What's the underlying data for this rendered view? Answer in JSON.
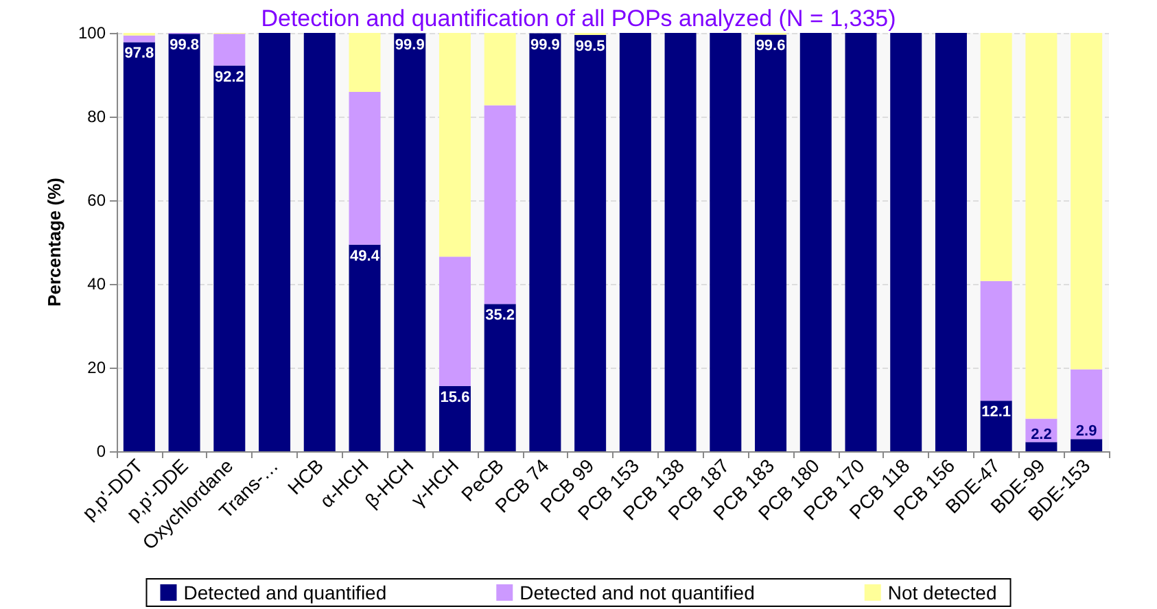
{
  "chart_data": {
    "type": "bar",
    "stacked": true,
    "title": "Detection and quantification of all POPs analyzed (N = 1,335)",
    "ylabel": "Percentage (%)",
    "categories": [
      "p,p'-DDT",
      "p,p'-DDE",
      "Oxychlordane",
      "Trans-…",
      "HCB",
      "α-HCH",
      "β-HCH",
      "γ-HCH",
      "PeCB",
      "PCB 74",
      "PCB 99",
      "PCB 153",
      "PCB 138",
      "PCB 187",
      "PCB 183",
      "PCB 180",
      "PCB 170",
      "PCB 118",
      "PCB 156",
      "BDE-47",
      "BDE-99",
      "BDE-153"
    ],
    "series": [
      {
        "name": "Detected and quantified",
        "color": "#000080",
        "values": [
          97.8,
          99.8,
          92.2,
          100,
          100,
          49.4,
          99.9,
          15.6,
          35.2,
          99.9,
          99.5,
          100,
          100,
          100,
          99.6,
          100,
          100,
          100,
          100,
          12.1,
          2.2,
          2.9
        ],
        "value_labels": [
          "97.8",
          "99.8",
          "92.2",
          null,
          null,
          "49.4",
          "99.9",
          "15.6",
          "35.2",
          "99.9",
          "99.5",
          null,
          null,
          null,
          "99.6",
          null,
          null,
          null,
          null,
          "12.1",
          "2.2",
          "2.9"
        ]
      },
      {
        "name": "Detected and not quantified",
        "color": "#cc99ff",
        "values": [
          1.6,
          0.2,
          7.6,
          0,
          0,
          36.5,
          0,
          30.9,
          47.5,
          0,
          0,
          0,
          0,
          0,
          0,
          0,
          0,
          0,
          0,
          28.6,
          5.6,
          16.7
        ]
      },
      {
        "name": "Not detected",
        "color": "#ffff99",
        "values": [
          0.6,
          0,
          0.2,
          0,
          0,
          14.1,
          null,
          53.5,
          17.3,
          null,
          0.5,
          0,
          0,
          0,
          0.4,
          0,
          0,
          0,
          0,
          59.3,
          92.2,
          80.4
        ]
      }
    ],
    "ylim": [
      0,
      100
    ],
    "yticks": [
      0,
      20,
      40,
      60,
      80,
      100
    ],
    "grid": "y",
    "legend": "bottom"
  }
}
